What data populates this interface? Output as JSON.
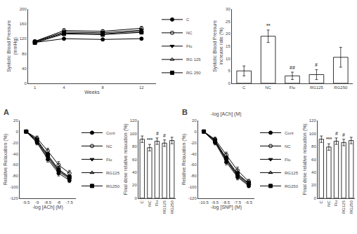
{
  "chart_data": [
    {
      "type": "line",
      "xlabel": "Weeks",
      "ylabel": "Systolic Blood Pressure\n(mmHg)",
      "x": [
        1,
        4,
        8,
        12
      ],
      "series": [
        {
          "name": "C",
          "color": "black",
          "marker": "circle",
          "values": [
            110,
            120,
            118,
            120
          ],
          "errors": [
            3,
            3,
            3,
            3
          ]
        },
        {
          "name": "NC",
          "color": "black",
          "marker": "circle-open",
          "values": [
            113,
            142,
            140,
            148
          ],
          "errors": [
            4,
            5,
            4,
            5
          ]
        },
        {
          "name": "Flu",
          "color": "black",
          "marker": "triangle-down",
          "values": [
            112,
            138,
            136,
            143
          ],
          "errors": [
            4,
            4,
            4,
            4
          ]
        },
        {
          "name": "RG 125",
          "color": "black",
          "marker": "triangle-up-open",
          "values": [
            111,
            135,
            133,
            140
          ],
          "errors": [
            4,
            4,
            4,
            4
          ]
        },
        {
          "name": "RG 250",
          "color": "black",
          "marker": "square",
          "values": [
            109,
            133,
            131,
            137
          ],
          "errors": [
            4,
            4,
            4,
            4
          ]
        }
      ],
      "xlim": [
        0.3,
        13.5
      ],
      "xticks": [
        1,
        4,
        8,
        12
      ],
      "ylim": [
        0,
        200
      ],
      "yticks": [
        0,
        40,
        80,
        120,
        160,
        200
      ],
      "grid": false,
      "legend": "right"
    },
    {
      "type": "bar",
      "ylabel": "Systolic Blood Pressure\nincrease rate (%)",
      "categories": [
        "C",
        "NC",
        "Flu",
        "RG125",
        "RG250"
      ],
      "values": [
        5,
        19,
        3,
        3.5,
        10.5
      ],
      "errors": [
        2,
        2.5,
        1.5,
        2,
        4
      ],
      "color": "white",
      "annotations": [
        {
          "category": "NC",
          "text": "**"
        },
        {
          "category": "Flu",
          "text": "##"
        },
        {
          "category": "RG125",
          "text": "#"
        }
      ],
      "ylim": [
        0,
        30
      ],
      "yticks": [
        0,
        5,
        10,
        15,
        20,
        25,
        30
      ],
      "grid": false
    },
    {
      "type": "line",
      "xlabel": "-log [ACh] (M)",
      "ylabel": "Relative Relaxation (%)",
      "annotations": [
        {
          "text": "A"
        }
      ],
      "x": [
        -9.5,
        -9.0,
        -8.5,
        -8.0,
        -7.5
      ],
      "series": [
        {
          "name": "Cont",
          "color": "black",
          "marker": "circle",
          "values": [
            0,
            -20,
            -50,
            -75,
            -88
          ],
          "errors": [
            2,
            4,
            5,
            5,
            4
          ]
        },
        {
          "name": "NC",
          "color": "black",
          "marker": "circle-open",
          "values": [
            0,
            -12,
            -35,
            -60,
            -75
          ],
          "errors": [
            2,
            4,
            5,
            6,
            5
          ]
        },
        {
          "name": "Flu",
          "color": "black",
          "marker": "triangle-down",
          "values": [
            0,
            -18,
            -47,
            -72,
            -85
          ],
          "errors": [
            2,
            3,
            4,
            5,
            4
          ]
        },
        {
          "name": "RG125",
          "color": "black",
          "marker": "triangle-up-open",
          "values": [
            0,
            -16,
            -44,
            -70,
            -83
          ],
          "errors": [
            2,
            3,
            4,
            5,
            4
          ]
        },
        {
          "name": "RG250",
          "color": "black",
          "marker": "square",
          "values": [
            0,
            -15,
            -42,
            -68,
            -82
          ],
          "errors": [
            2,
            3,
            4,
            5,
            4
          ]
        }
      ],
      "xlim": [
        -9.8,
        -7.2
      ],
      "xticks": [
        -9.5,
        -9,
        -8.5,
        -8,
        -7.5
      ],
      "ylim": [
        -120,
        20
      ],
      "yticks": [
        20,
        0,
        -20,
        -40,
        -60,
        -80,
        -100,
        -120
      ],
      "grid": false,
      "legend": "right"
    },
    {
      "type": "bar",
      "ylabel": "Final dose relative relaxation (%)",
      "categories": [
        "C",
        "NC",
        "Flu",
        "RG125",
        "RG250"
      ],
      "values": [
        91,
        78,
        88,
        85,
        89
      ],
      "errors": [
        5,
        5,
        5,
        5,
        5
      ],
      "color": "white",
      "annotations": [
        {
          "category": "NC",
          "text": "***"
        },
        {
          "category": "Flu",
          "text": "#"
        },
        {
          "category": "RG125",
          "text": "#"
        }
      ],
      "ylim": [
        0,
        120
      ],
      "yticks": [
        0,
        20,
        40,
        60,
        80,
        100,
        120
      ],
      "grid": false
    },
    {
      "type": "line",
      "title": "-log [ACh] (M)",
      "xlabel": "-log [SNP] (M)",
      "ylabel": "Relative Relaxation (%)",
      "annotations": [
        {
          "text": "B"
        }
      ],
      "x": [
        -10.5,
        -9.5,
        -8.5,
        -7.5,
        -6.5
      ],
      "series": [
        {
          "name": "Cont",
          "color": "black",
          "marker": "circle",
          "values": [
            0,
            -20,
            -55,
            -82,
            -98
          ],
          "errors": [
            2,
            4,
            5,
            5,
            3
          ]
        },
        {
          "name": "NC",
          "color": "black",
          "marker": "circle-open",
          "values": [
            0,
            -14,
            -42,
            -70,
            -90
          ],
          "errors": [
            2,
            4,
            5,
            6,
            4
          ]
        },
        {
          "name": "Flu",
          "color": "black",
          "marker": "triangle-down",
          "values": [
            0,
            -18,
            -52,
            -80,
            -96
          ],
          "errors": [
            2,
            3,
            4,
            5,
            3
          ]
        },
        {
          "name": "RG125",
          "color": "black",
          "marker": "triangle-up-open",
          "values": [
            0,
            -17,
            -50,
            -78,
            -94
          ],
          "errors": [
            2,
            3,
            4,
            5,
            3
          ]
        },
        {
          "name": "RG250",
          "color": "black",
          "marker": "square",
          "values": [
            0,
            -16,
            -48,
            -76,
            -93
          ],
          "errors": [
            2,
            3,
            4,
            5,
            3
          ]
        }
      ],
      "xlim": [
        -11.0,
        -6.0
      ],
      "xticks": [
        -10.5,
        -9.5,
        -8.5,
        -7.5,
        -6.5
      ],
      "ylim": [
        -120,
        20
      ],
      "yticks": [
        20,
        0,
        -20,
        -40,
        -60,
        -80,
        -100,
        -120
      ],
      "grid": false,
      "legend": "right"
    },
    {
      "type": "bar",
      "ylabel": "Final dose relative relaxation (%)",
      "categories": [
        "C",
        "NC",
        "Flu",
        "RG125",
        "RG250"
      ],
      "values": [
        91,
        79,
        88,
        86,
        89
      ],
      "errors": [
        5,
        5,
        5,
        5,
        5
      ],
      "color": "white",
      "annotations": [
        {
          "category": "NC",
          "text": "***"
        },
        {
          "category": "Flu",
          "text": "#"
        },
        {
          "category": "RG125",
          "text": "#"
        }
      ],
      "ylim": [
        0,
        120
      ],
      "yticks": [
        0,
        20,
        40,
        60,
        80,
        100,
        120
      ],
      "grid": false
    }
  ]
}
